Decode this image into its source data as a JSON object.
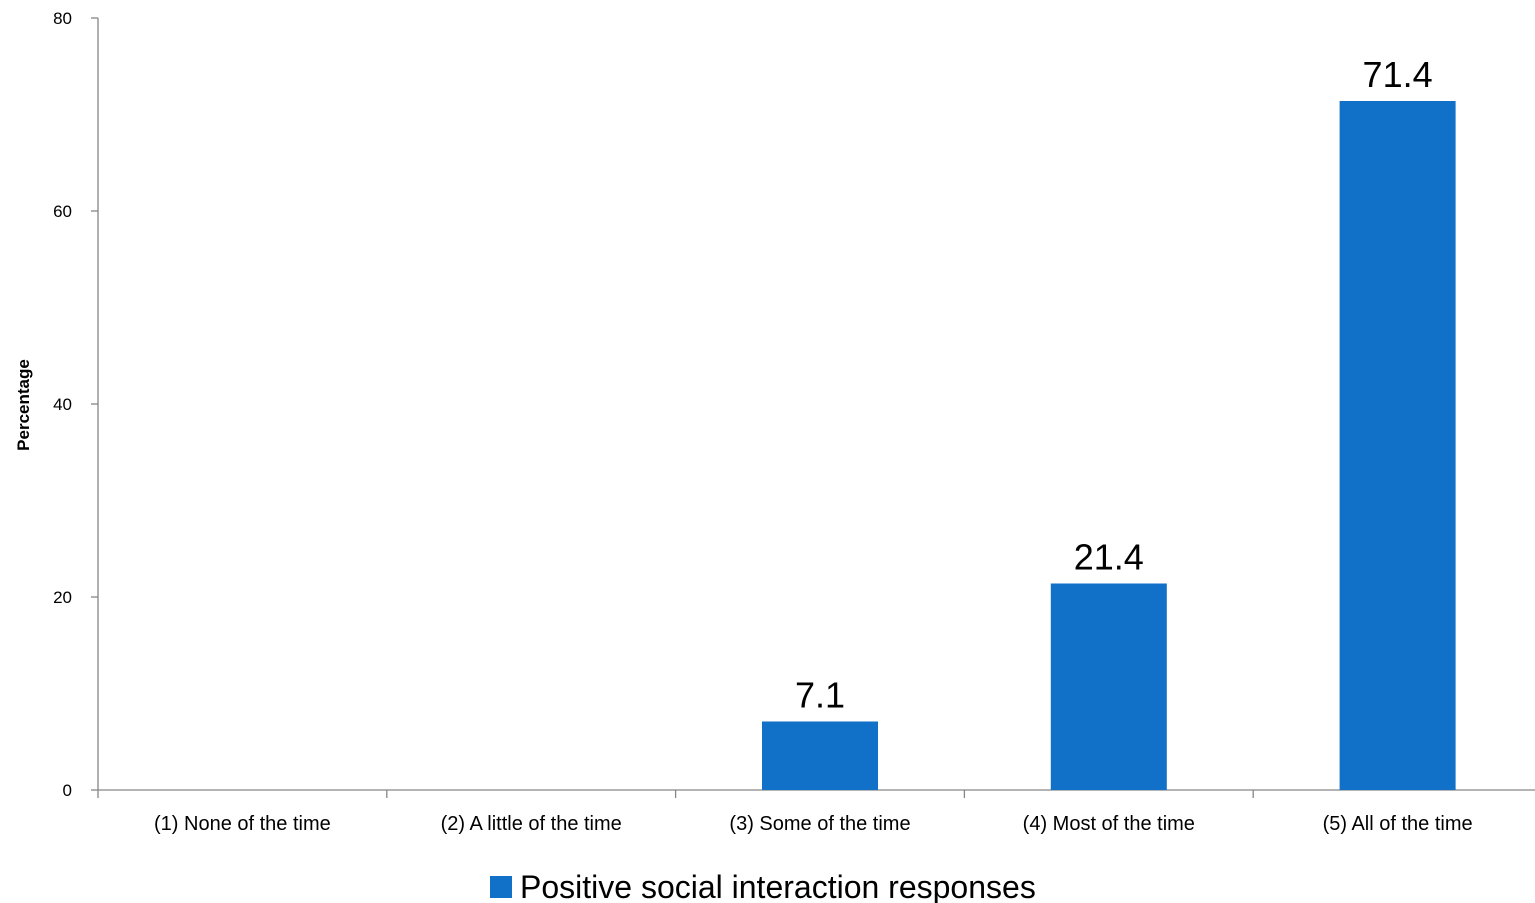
{
  "chart_data": {
    "type": "bar",
    "categories": [
      "(1) None of the time",
      "(2) A little of the time",
      "(3) Some of the time",
      "(4) Most of the time",
      "(5) All of the time"
    ],
    "series": [
      {
        "name": "Positive social interaction responses",
        "values": [
          0,
          0,
          7.1,
          21.4,
          71.4
        ],
        "data_labels": [
          "",
          "",
          "7.1",
          "21.4",
          "71.4"
        ],
        "color": "#1170C8"
      }
    ],
    "title": "",
    "xlabel": "",
    "ylabel": "Percentage",
    "ylim": [
      0,
      80
    ],
    "yticks": [
      0,
      20,
      40,
      60,
      80
    ],
    "grid": false,
    "legend_position": "bottom"
  }
}
